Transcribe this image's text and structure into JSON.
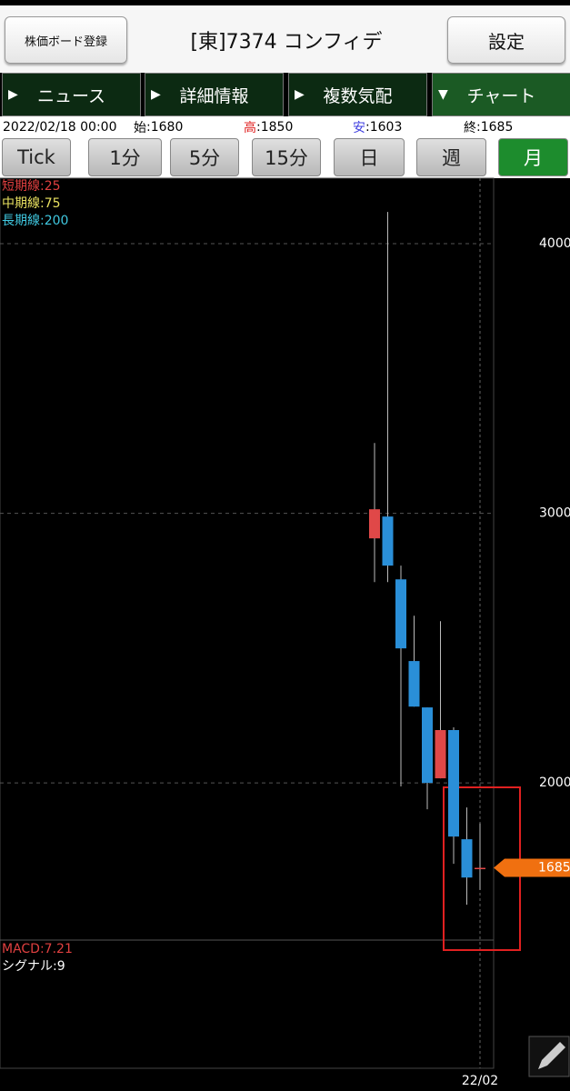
{
  "header": {
    "left_button": "株価ボード登録",
    "title": "[東]7374 コンフィデ",
    "right_button": "設定"
  },
  "tabs": [
    {
      "arrow": "▶",
      "label": "ニュース"
    },
    {
      "arrow": "▶",
      "label": "詳細情報"
    },
    {
      "arrow": "▶",
      "label": "複数気配"
    },
    {
      "arrow": "▼",
      "label": "チャート"
    }
  ],
  "info": {
    "date": "2022/02/18 00:00",
    "items": [
      {
        "label": "始",
        "text": ":1680",
        "color": "#000000"
      },
      {
        "label": "高",
        "text": ":1850",
        "color": "#e02020"
      },
      {
        "label": "安",
        "text": ":1603",
        "color": "#4040e0"
      },
      {
        "label": "終",
        "text": ":1685",
        "color": "#000000"
      }
    ]
  },
  "periods": [
    "Tick",
    "1分",
    "5分",
    "15分",
    "日",
    "週",
    "月"
  ],
  "chart_data": {
    "type": "candlestick",
    "categories": [
      null,
      null,
      null,
      null,
      null,
      null,
      null,
      null,
      "22/02"
    ],
    "open": [
      2907,
      2988,
      2755,
      2452,
      2280,
      2017,
      2196,
      1791,
      1680
    ],
    "high": [
      3261,
      4118,
      2806,
      2620,
      2280,
      2600,
      2206,
      1909,
      1850
    ],
    "low": [
      2745,
      2745,
      1987,
      2283,
      1902,
      2017,
      1700,
      1548,
      1603
    ],
    "close": [
      3015,
      2806,
      2499,
      2283,
      2000,
      2196,
      1801,
      1649,
      1685
    ],
    "up_color": "#e04848",
    "down_color": "#2a8fd8",
    "ylim": [
      1417,
      4243
    ],
    "yticks": [
      2000,
      3000,
      4000
    ],
    "grid": true,
    "indicators": [
      {
        "name": "短期線:25",
        "color": "#e04040"
      },
      {
        "name": "中期線:75",
        "color": "#e8e060"
      },
      {
        "name": "長期線:200",
        "color": "#40c8e0"
      }
    ],
    "macd_labels": [
      {
        "text": "MACD:7.21",
        "color": "#e04040"
      },
      {
        "text": "シグナル:9",
        "color": "#ffffff"
      }
    ]
  }
}
